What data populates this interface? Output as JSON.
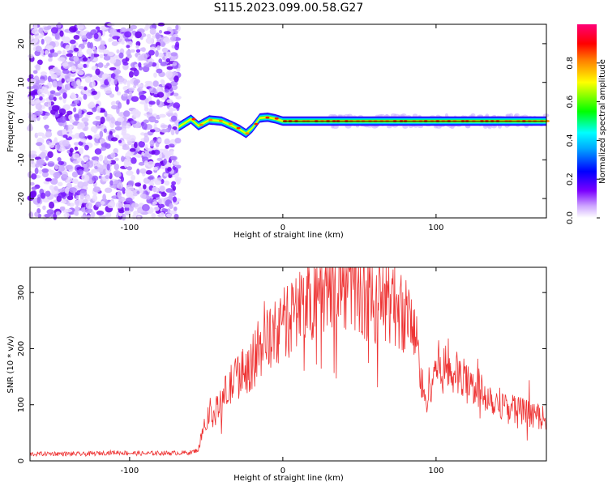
{
  "title": "S115.2023.099.00.58.G27",
  "chart_data": [
    {
      "type": "heatmap",
      "title": "",
      "xlabel": "Height of straight line (km)",
      "ylabel": "Frequency (Hz)",
      "xlim": [
        -165,
        172
      ],
      "ylim": [
        -25,
        25
      ],
      "xticks": [
        -100,
        0,
        100
      ],
      "xtick_labels": [
        "-100",
        "0",
        "100"
      ],
      "yticks": [
        -20,
        -10,
        0,
        10,
        20
      ],
      "ytick_labels": [
        "-20",
        "-10",
        "0",
        "10",
        "20"
      ],
      "colorbar": {
        "label": "Normalized spectral amplitude",
        "range": [
          0,
          1
        ],
        "ticks": [
          0,
          0.2,
          0.4,
          0.6,
          0.8
        ],
        "tick_labels": [
          "0.0",
          "0.2",
          "0.4",
          "0.6",
          "0.8"
        ],
        "colormap": [
          "#ffffff",
          "#7b00ff",
          "#0000ff",
          "#00ffff",
          "#00ff00",
          "#ffff00",
          "#ff0000",
          "#ff00ff"
        ]
      },
      "features": {
        "noise_region_x": [
          -165,
          -68
        ],
        "trace_start_x": -68,
        "trace_points": [
          [
            -68,
            -1.5
          ],
          [
            -60,
            0.5
          ],
          [
            -55,
            -1.2
          ],
          [
            -48,
            0.3
          ],
          [
            -40,
            0
          ],
          [
            -33,
            -1.2
          ],
          [
            -28,
            -2.2
          ],
          [
            -24,
            -3.2
          ],
          [
            -20,
            -1.8
          ],
          [
            -15,
            0.8
          ],
          [
            -10,
            1
          ],
          [
            -5,
            0.6
          ],
          [
            0,
            0
          ],
          [
            172,
            0
          ]
        ],
        "trace_band_halfwidth_hz": 1.2
      }
    },
    {
      "type": "line",
      "title": "",
      "xlabel": "Height of straight line (km)",
      "ylabel": "SNR (10 * v/v)",
      "xlim": [
        -165,
        172
      ],
      "ylim": [
        0,
        345
      ],
      "xticks": [
        -100,
        0,
        100
      ],
      "xtick_labels": [
        "-100",
        "0",
        "100"
      ],
      "yticks": [
        0,
        100,
        200,
        300
      ],
      "ytick_labels": [
        "0",
        "100",
        "200",
        "300"
      ],
      "series": [
        {
          "name": "SNR",
          "color": "#ee3333",
          "x": [
            -165,
            -150,
            -130,
            -110,
            -100,
            -90,
            -80,
            -70,
            -60,
            -55,
            -52,
            -48,
            -45,
            -40,
            -35,
            -30,
            -25,
            -20,
            -15,
            -12,
            -10,
            -5,
            0,
            5,
            10,
            15,
            20,
            25,
            30,
            33,
            35,
            38,
            40,
            45,
            50,
            55,
            60,
            65,
            70,
            75,
            80,
            85,
            88,
            90,
            93,
            95,
            100,
            105,
            110,
            115,
            120,
            125,
            130,
            135,
            140,
            145,
            150,
            155,
            160,
            165,
            172
          ],
          "values": [
            12,
            13,
            12,
            15,
            14,
            13,
            14,
            14,
            15,
            20,
            60,
            90,
            80,
            110,
            130,
            150,
            160,
            175,
            195,
            230,
            210,
            225,
            240,
            255,
            270,
            285,
            300,
            310,
            320,
            328,
            322,
            325,
            315,
            310,
            300,
            295,
            290,
            285,
            288,
            275,
            260,
            245,
            200,
            150,
            100,
            130,
            170,
            165,
            160,
            150,
            140,
            135,
            125,
            115,
            105,
            100,
            95,
            90,
            85,
            80,
            75
          ]
        }
      ]
    }
  ]
}
